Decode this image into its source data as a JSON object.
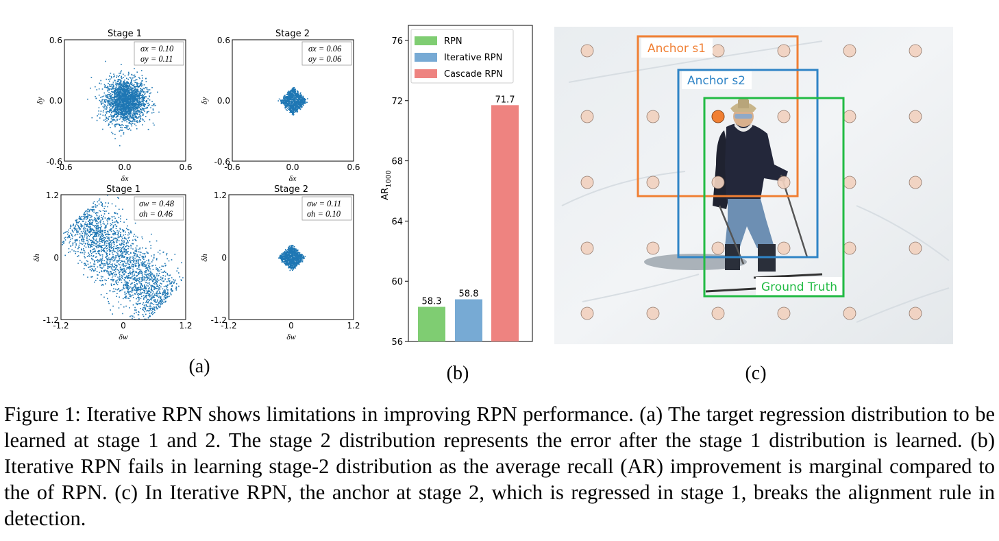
{
  "panels": {
    "a": {
      "label": "(a)",
      "plots": [
        {
          "id": "a1",
          "title": "Stage 1",
          "xlabel": "δx",
          "ylabel": "δy",
          "xticks": [
            "-0.6",
            "0.0",
            "0.6"
          ],
          "yticks": [
            "0.6",
            "0.0",
            "-0.6"
          ],
          "stats": [
            "σx = 0.10",
            "σy = 0.11"
          ]
        },
        {
          "id": "a2",
          "title": "Stage 2",
          "xlabel": "δx",
          "ylabel": "δy",
          "xticks": [
            "-0.6",
            "0.0",
            "0.6"
          ],
          "yticks": [
            "0.6",
            "0.0",
            "-0.6"
          ],
          "stats": [
            "σx = 0.06",
            "σy = 0.06"
          ]
        },
        {
          "id": "a3",
          "title": "Stage 1",
          "xlabel": "δw",
          "ylabel": "δh",
          "xticks": [
            "-1.2",
            "0",
            "1.2"
          ],
          "yticks": [
            "1.2",
            "0",
            "-1.2"
          ],
          "stats": [
            "σw = 0.48",
            "σh = 0.46"
          ]
        },
        {
          "id": "a4",
          "title": "Stage 2",
          "xlabel": "δw",
          "ylabel": "δh",
          "xticks": [
            "-1.2",
            "0",
            "1.2"
          ],
          "yticks": [
            "1.2",
            "0",
            "-1.2"
          ],
          "stats": [
            "σw = 0.11",
            "σh = 0.10"
          ]
        }
      ]
    },
    "b": {
      "label": "(b)"
    },
    "c": {
      "label": "(c)",
      "boxes": [
        {
          "label": "Anchor s1",
          "color": "#f07f33"
        },
        {
          "label": "Anchor s2",
          "color": "#2f84c6"
        },
        {
          "label": "Ground Truth",
          "color": "#22bb44"
        }
      ],
      "anchor_point_color": "#f2d2c0",
      "highlight_point_color": "#f07f33"
    }
  },
  "chart_data": [
    {
      "type": "scatter",
      "title": "Stage 1",
      "xlabel": "δx",
      "ylabel": "δy",
      "xlim": [
        -0.6,
        0.6
      ],
      "ylim": [
        -0.6,
        0.6
      ],
      "sigma_x": 0.1,
      "sigma_y": 0.11,
      "color": "#1f77b4"
    },
    {
      "type": "scatter",
      "title": "Stage 2",
      "xlabel": "δx",
      "ylabel": "δy",
      "xlim": [
        -0.6,
        0.6
      ],
      "ylim": [
        -0.6,
        0.6
      ],
      "sigma_x": 0.06,
      "sigma_y": 0.06,
      "color": "#1f77b4"
    },
    {
      "type": "scatter",
      "title": "Stage 1",
      "xlabel": "δw",
      "ylabel": "δh",
      "xlim": [
        -1.2,
        1.2
      ],
      "ylim": [
        -1.2,
        1.2
      ],
      "sigma_w": 0.48,
      "sigma_h": 0.46,
      "color": "#1f77b4"
    },
    {
      "type": "scatter",
      "title": "Stage 2",
      "xlabel": "δw",
      "ylabel": "δh",
      "xlim": [
        -1.2,
        1.2
      ],
      "ylim": [
        -1.2,
        1.2
      ],
      "sigma_w": 0.11,
      "sigma_h": 0.1,
      "color": "#1f77b4"
    },
    {
      "type": "bar",
      "categories": [
        "RPN",
        "Iterative RPN",
        "Cascade RPN"
      ],
      "values": [
        58.3,
        58.8,
        71.7
      ],
      "colors": [
        "#7fcd72",
        "#77aad4",
        "#ee8380"
      ],
      "ylabel": "AR1000",
      "ylim": [
        56,
        77
      ],
      "yticks": [
        56,
        60,
        64,
        68,
        72,
        76
      ],
      "legend": "top-left",
      "grid": false
    }
  ],
  "caption": "Figure 1: Iterative RPN shows limitations in improving RPN performance. (a) The target regression distribution to be learned at stage 1 and 2. The stage 2 distribution represents the error after the stage 1 distribution is learned. (b) Iterative RPN fails in learning stage-2 distribution as the average recall (AR) improvement is marginal compared to the of RPN. (c) In Iterative RPN, the anchor at stage 2, which is regressed in stage 1, breaks the alignment rule in detection."
}
